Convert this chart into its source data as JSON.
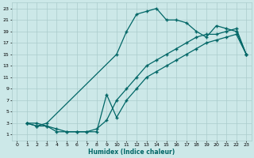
{
  "xlabel": "Humidex (Indice chaleur)",
  "bg_color": "#cce8e8",
  "line_color": "#006666",
  "xlim": [
    -0.5,
    23.5
  ],
  "ylim": [
    0,
    24
  ],
  "xticks": [
    0,
    1,
    2,
    3,
    4,
    5,
    6,
    7,
    8,
    9,
    10,
    11,
    12,
    13,
    14,
    15,
    16,
    17,
    18,
    19,
    20,
    21,
    22,
    23
  ],
  "yticks": [
    1,
    3,
    5,
    7,
    9,
    11,
    13,
    15,
    17,
    19,
    21,
    23
  ],
  "grid_color": "#aacccc",
  "curve_upper_x": [
    1,
    2,
    3,
    10,
    11,
    12,
    13,
    14,
    15,
    16,
    17,
    18,
    19,
    20,
    21,
    22,
    23
  ],
  "curve_upper_y": [
    3,
    2.5,
    3,
    15,
    19,
    22,
    22.5,
    23,
    21,
    21,
    20.5,
    19,
    18,
    20,
    19.5,
    19,
    15
  ],
  "curve_mid_x": [
    1,
    2,
    3,
    4,
    5,
    6,
    7,
    8,
    9,
    10,
    11,
    12,
    13,
    14,
    15,
    16,
    17,
    18,
    19,
    20,
    21,
    22,
    23
  ],
  "curve_mid_y": [
    3,
    3,
    2.5,
    2,
    1.5,
    1.5,
    1.5,
    2,
    3.5,
    7,
    9,
    11,
    13,
    14,
    15,
    16,
    17,
    18,
    18.5,
    18.5,
    19,
    19.5,
    15
  ],
  "curve_low_x": [
    1,
    2,
    3,
    4,
    5,
    6,
    7,
    8,
    9,
    10,
    11,
    12,
    13,
    14,
    15,
    16,
    17,
    18,
    19,
    20,
    21,
    22,
    23
  ],
  "curve_low_y": [
    3,
    2.5,
    2.5,
    1.5,
    1.5,
    1.5,
    1.5,
    1.5,
    8,
    4,
    7,
    9,
    11,
    12,
    13,
    14,
    15,
    16,
    17,
    17.5,
    18,
    18.5,
    15
  ]
}
